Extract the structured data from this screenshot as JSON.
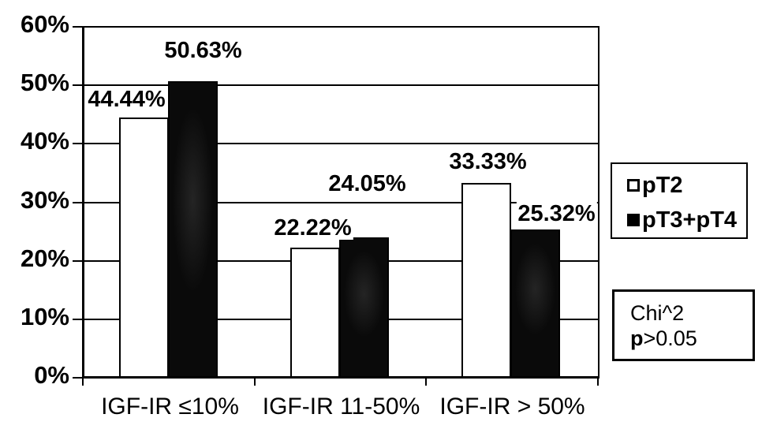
{
  "chart_data": {
    "type": "bar",
    "categories": [
      "IGF-IR ≤10%",
      "IGF-IR 11-50%",
      "IGF-IR > 50%"
    ],
    "series": [
      {
        "name": "pT2",
        "values": [
          44.44,
          22.22,
          33.33
        ],
        "fill": "#ffffff"
      },
      {
        "name": "pT3+pT4",
        "values": [
          50.63,
          24.05,
          25.32
        ],
        "fill": "#0d0d0d"
      }
    ],
    "value_label_format": "{value}%",
    "ylim": [
      0,
      60
    ],
    "ytick_step": 10,
    "ytick_labels": [
      "0%",
      "10%",
      "20%",
      "30%",
      "40%",
      "50%",
      "60%"
    ],
    "grid": true,
    "legend_position": "right-outside",
    "bar_border_color": "#000000",
    "background_color": "#ffffff"
  },
  "legend": {
    "items": [
      {
        "label": "pT2",
        "swatch": "white-square"
      },
      {
        "label": "pT3+pT4",
        "swatch": "black-square"
      }
    ]
  },
  "annotation": {
    "line1": "Chi^2",
    "line2": "p>0.05"
  }
}
